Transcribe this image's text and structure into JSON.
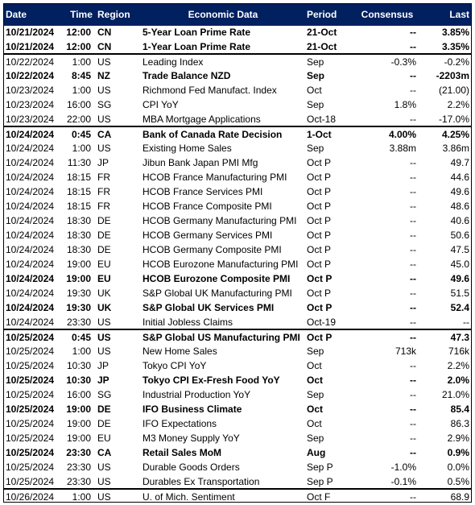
{
  "table": {
    "header": [
      "Date",
      "Time",
      "Region",
      "Economic Data",
      "Period",
      "Consensus",
      "Last"
    ],
    "rows": [
      {
        "cells": [
          "10/21/2024",
          "12:00",
          "CN",
          "5-Year Loan Prime Rate",
          "21-Oct",
          "--",
          "3.85%"
        ],
        "bold": true
      },
      {
        "cells": [
          "10/21/2024",
          "12:00",
          "CN",
          "1-Year Loan Prime Rate",
          "21-Oct",
          "--",
          "3.35%"
        ],
        "bold": true
      },
      {
        "cells": [
          "10/22/2024",
          "1:00",
          "US",
          "Leading Index",
          "Sep",
          "-0.3%",
          "-0.2%"
        ],
        "separator": true
      },
      {
        "cells": [
          "10/22/2024",
          "8:45",
          "NZ",
          "Trade Balance NZD",
          "Sep",
          "--",
          "-2203m"
        ],
        "bold": true
      },
      {
        "cells": [
          "10/23/2024",
          "1:00",
          "US",
          "Richmond Fed Manufact. Index",
          "Oct",
          "--",
          "(21.00)"
        ]
      },
      {
        "cells": [
          "10/23/2024",
          "16:00",
          "SG",
          "CPI YoY",
          "Sep",
          "1.8%",
          "2.2%"
        ]
      },
      {
        "cells": [
          "10/23/2024",
          "22:00",
          "US",
          "MBA Mortgage Applications",
          "Oct-18",
          "--",
          "-17.0%"
        ]
      },
      {
        "cells": [
          "10/24/2024",
          "0:45",
          "CA",
          "Bank of Canada Rate Decision",
          "1-Oct",
          "4.00%",
          "4.25%"
        ],
        "bold": true,
        "separator": true
      },
      {
        "cells": [
          "10/24/2024",
          "1:00",
          "US",
          "Existing Home Sales",
          "Sep",
          "3.88m",
          "3.86m"
        ]
      },
      {
        "cells": [
          "10/24/2024",
          "11:30",
          "JP",
          "Jibun Bank Japan PMI Mfg",
          "Oct P",
          "--",
          "49.7"
        ]
      },
      {
        "cells": [
          "10/24/2024",
          "18:15",
          "FR",
          "HCOB France Manufacturing PMI",
          "Oct P",
          "--",
          "44.6"
        ]
      },
      {
        "cells": [
          "10/24/2024",
          "18:15",
          "FR",
          "HCOB France Services PMI",
          "Oct P",
          "--",
          "49.6"
        ]
      },
      {
        "cells": [
          "10/24/2024",
          "18:15",
          "FR",
          "HCOB France Composite PMI",
          "Oct P",
          "--",
          "48.6"
        ]
      },
      {
        "cells": [
          "10/24/2024",
          "18:30",
          "DE",
          "HCOB Germany Manufacturing PMI",
          "Oct P",
          "--",
          "40.6"
        ]
      },
      {
        "cells": [
          "10/24/2024",
          "18:30",
          "DE",
          "HCOB Germany Services PMI",
          "Oct P",
          "--",
          "50.6"
        ]
      },
      {
        "cells": [
          "10/24/2024",
          "18:30",
          "DE",
          "HCOB Germany Composite PMI",
          "Oct P",
          "--",
          "47.5"
        ]
      },
      {
        "cells": [
          "10/24/2024",
          "19:00",
          "EU",
          "HCOB Eurozone Manufacturing PMI",
          "Oct P",
          "--",
          "45.0"
        ]
      },
      {
        "cells": [
          "10/24/2024",
          "19:00",
          "EU",
          "HCOB Eurozone Composite PMI",
          "Oct P",
          "--",
          "49.6"
        ],
        "bold": true
      },
      {
        "cells": [
          "10/24/2024",
          "19:30",
          "UK",
          "S&P Global UK Manufacturing PMI",
          "Oct P",
          "--",
          "51.5"
        ]
      },
      {
        "cells": [
          "10/24/2024",
          "19:30",
          "UK",
          "S&P Global UK Services PMI",
          "Oct P",
          "--",
          "52.4"
        ],
        "bold": true
      },
      {
        "cells": [
          "10/24/2024",
          "23:30",
          "US",
          "Initial Jobless Claims",
          "Oct-19",
          "--",
          "--"
        ]
      },
      {
        "cells": [
          "10/25/2024",
          "0:45",
          "US",
          "S&P Global US Manufacturing PMI",
          "Oct P",
          "--",
          "47.3"
        ],
        "bold": true,
        "separator": true
      },
      {
        "cells": [
          "10/25/2024",
          "1:00",
          "US",
          "New Home Sales",
          "Sep",
          "713k",
          "716k"
        ]
      },
      {
        "cells": [
          "10/25/2024",
          "10:30",
          "JP",
          "Tokyo CPI YoY",
          "Oct",
          "--",
          "2.2%"
        ]
      },
      {
        "cells": [
          "10/25/2024",
          "10:30",
          "JP",
          "Tokyo CPI Ex-Fresh Food YoY",
          "Oct",
          "--",
          "2.0%"
        ],
        "bold": true
      },
      {
        "cells": [
          "10/25/2024",
          "16:00",
          "SG",
          "Industrial Production YoY",
          "Sep",
          "--",
          "21.0%"
        ]
      },
      {
        "cells": [
          "10/25/2024",
          "19:00",
          "DE",
          "IFO Business Climate",
          "Oct",
          "--",
          "85.4"
        ],
        "bold": true
      },
      {
        "cells": [
          "10/25/2024",
          "19:00",
          "DE",
          "IFO Expectations",
          "Oct",
          "--",
          "86.3"
        ]
      },
      {
        "cells": [
          "10/25/2024",
          "19:00",
          "EU",
          "M3 Money Supply YoY",
          "Sep",
          "--",
          "2.9%"
        ]
      },
      {
        "cells": [
          "10/25/2024",
          "23:30",
          "CA",
          "Retail Sales MoM",
          "Aug",
          "--",
          "0.9%"
        ],
        "bold": true
      },
      {
        "cells": [
          "10/25/2024",
          "23:30",
          "US",
          "Durable Goods Orders",
          "Sep P",
          "-1.0%",
          "0.0%"
        ]
      },
      {
        "cells": [
          "10/25/2024",
          "23:30",
          "US",
          "Durables Ex Transportation",
          "Sep P",
          "-0.1%",
          "0.5%"
        ]
      },
      {
        "cells": [
          "10/26/2024",
          "1:00",
          "US",
          "U. of Mich. Sentiment",
          "Oct F",
          "--",
          "68.9"
        ],
        "separator": true
      }
    ]
  }
}
